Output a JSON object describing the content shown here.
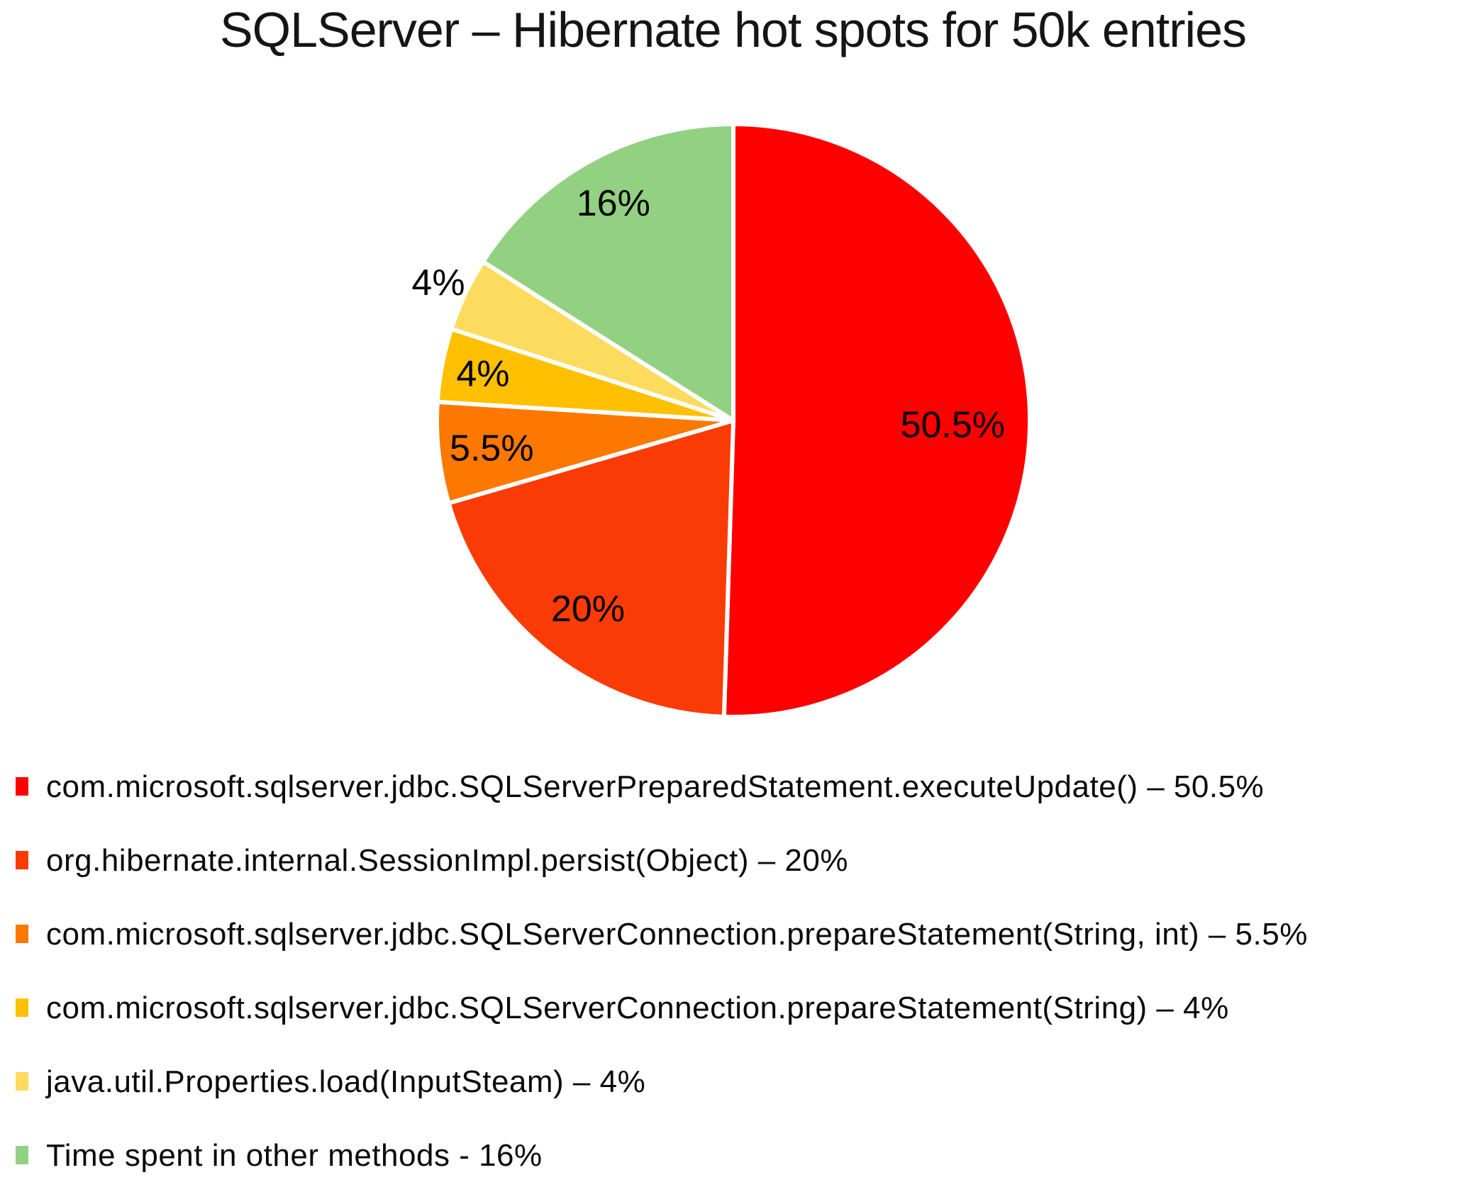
{
  "chart_data": {
    "type": "pie",
    "title": "SQLServer – Hibernate hot spots for 50k entries",
    "start_angle_deg": 0,
    "direction": "clockwise",
    "total": 100,
    "labels_color": "#000000",
    "legend_position": "bottom-left",
    "slices": [
      {
        "name": "com.microsoft.sqlserver.jdbc.SQLServerPreparedStatement.executeUpdate()",
        "value": 50.5,
        "pct_label": "50.5%",
        "legend_label": "com.microsoft.sqlserver.jdbc.SQLServerPreparedStatement.executeUpdate() – 50.5%",
        "color": "#fe0000",
        "label_r_frac": 0.74
      },
      {
        "name": "org.hibernate.internal.SessionImpl.persist(Object)",
        "value": 20,
        "pct_label": "20%",
        "legend_label": "org.hibernate.internal.SessionImpl.persist(Object) – 20%",
        "color": "#fa3b05",
        "label_r_frac": 0.8
      },
      {
        "name": "com.microsoft.sqlserver.jdbc.SQLServerConnection.prepareStatement(String, int)",
        "value": 5.5,
        "pct_label": "5.5%",
        "legend_label": "com.microsoft.sqlserver.jdbc.SQLServerConnection.prepareStatement(String, int) – 5.5%",
        "color": "#fc7800",
        "label_r_frac": 0.82
      },
      {
        "name": "com.microsoft.sqlserver.jdbc.SQLServerConnection.prepareStatement(String)",
        "value": 4,
        "pct_label": "4%",
        "legend_label": "com.microsoft.sqlserver.jdbc.SQLServerConnection.prepareStatement(String) – 4%",
        "color": "#fec000",
        "label_r_frac": 0.86
      },
      {
        "name": "java.util.Properties.load(InputSteam)",
        "value": 4,
        "pct_label": "4%",
        "legend_label": "java.util.Properties.load(InputSteam) – 4%",
        "color": "#fddb5e",
        "label_r_frac": 1.1
      },
      {
        "name": "Time spent in other methods",
        "value": 16,
        "pct_label": "16%",
        "legend_label": "Time spent in other methods - 16%",
        "color": "#92d182",
        "label_r_frac": 0.84
      }
    ]
  }
}
